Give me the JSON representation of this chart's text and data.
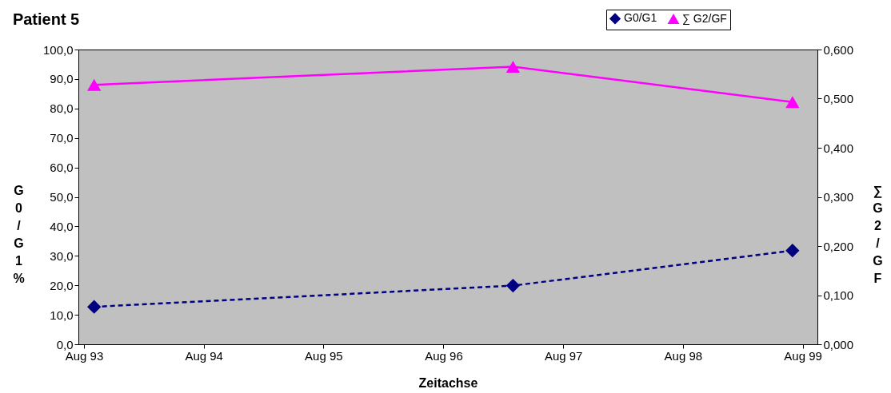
{
  "chart_data": {
    "type": "line",
    "title": "Patient 5",
    "xlabel": "Zeitachse",
    "ylabel": "G0/G1 %",
    "y2label": "∑ G2/GF",
    "xlim": [
      "1993-07-15",
      "1999-09-15"
    ],
    "xticks": [
      {
        "value": "1993-08-01",
        "label": "Aug 93"
      },
      {
        "value": "1994-08-01",
        "label": "Aug 94"
      },
      {
        "value": "1995-08-01",
        "label": "Aug 95"
      },
      {
        "value": "1996-08-01",
        "label": "Aug 96"
      },
      {
        "value": "1997-08-01",
        "label": "Aug 97"
      },
      {
        "value": "1998-08-01",
        "label": "Aug 98"
      },
      {
        "value": "1999-08-01",
        "label": "Aug 99"
      }
    ],
    "ylim": [
      0,
      100
    ],
    "yticks": [
      {
        "value": 0,
        "label": "0,0"
      },
      {
        "value": 10,
        "label": "10,0"
      },
      {
        "value": 20,
        "label": "20,0"
      },
      {
        "value": 30,
        "label": "30,0"
      },
      {
        "value": 40,
        "label": "40,0"
      },
      {
        "value": 50,
        "label": "50,0"
      },
      {
        "value": 60,
        "label": "60,0"
      },
      {
        "value": 70,
        "label": "70,0"
      },
      {
        "value": 80,
        "label": "80,0"
      },
      {
        "value": 90,
        "label": "90,0"
      },
      {
        "value": 100,
        "label": "100,0"
      }
    ],
    "y2lim": [
      0,
      0.6
    ],
    "y2ticks": [
      {
        "value": 0,
        "label": "0,000"
      },
      {
        "value": 0.1,
        "label": "0,100"
      },
      {
        "value": 0.2,
        "label": "0,200"
      },
      {
        "value": 0.3,
        "label": "0,300"
      },
      {
        "value": 0.4,
        "label": "0,400"
      },
      {
        "value": 0.5,
        "label": "0,500"
      },
      {
        "value": 0.6,
        "label": "0,600"
      }
    ],
    "x": [
      "1993-09-01",
      "1997-03-01",
      "1999-07-01"
    ],
    "grid": false,
    "legend": "top right",
    "series": [
      {
        "name": "G0/G1",
        "color": "#000080",
        "values": [
          12.7,
          19.9,
          31.8
        ],
        "marker": "diamond",
        "line_style": "dashed"
      },
      {
        "name": "∑ G2/GF",
        "color": "#ff00ff",
        "values": [
          0.528,
          0.565,
          0.493
        ],
        "marker": "triangle",
        "line_style": "solid",
        "axis": "y2"
      }
    ]
  }
}
